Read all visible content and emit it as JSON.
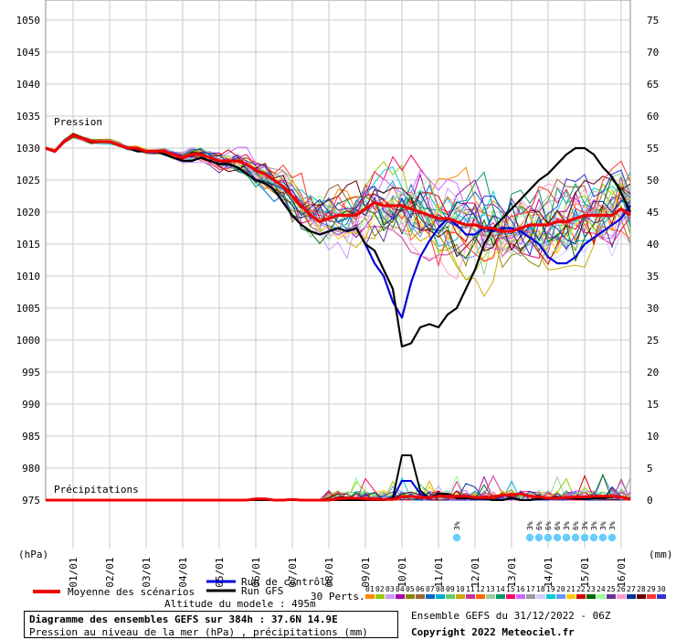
{
  "chart_data": {
    "type": "line",
    "title": "Diagramme des ensembles GEFS sur 384h : 37.6N 14.9E",
    "subtitle": "Pression au niveau de la mer (hPa) , précipitations (mm)",
    "left_axis_unit": "(hPa)",
    "right_axis_unit": "(mm)",
    "left_ticks": [
      1050,
      1045,
      1040,
      1035,
      1030,
      1025,
      1020,
      1015,
      1010,
      1005,
      1000,
      995,
      990,
      985,
      980,
      975
    ],
    "right_ticks": [
      75,
      70,
      65,
      60,
      55,
      50,
      45,
      40,
      35,
      30,
      25,
      20,
      15,
      10,
      5,
      0
    ],
    "x_labels": [
      "01/01",
      "02/01",
      "03/01",
      "04/01",
      "05/01",
      "06/01",
      "07/01",
      "08/01",
      "09/01",
      "10/01",
      "11/01",
      "12/01",
      "13/01",
      "14/01",
      "15/01",
      "16/01"
    ],
    "pressure_label": "Pression",
    "precip_label": "Précipitations",
    "ylim_pressure": [
      975,
      1050
    ],
    "ylim_precip": [
      0,
      75
    ],
    "grid": true,
    "hours": [
      0,
      6,
      12,
      18,
      24,
      30,
      36,
      42,
      48,
      54,
      60,
      66,
      72,
      78,
      84,
      90,
      96,
      102,
      108,
      114,
      120,
      126,
      132,
      138,
      144,
      150,
      156,
      162,
      168,
      174,
      180,
      186,
      192,
      198,
      204,
      210,
      216,
      222,
      228,
      234,
      240,
      246,
      252,
      258,
      264,
      270,
      276,
      282,
      288,
      294,
      300,
      306,
      312,
      318,
      324,
      330,
      336,
      342,
      348,
      354,
      360,
      366,
      372,
      378,
      384
    ],
    "series": [
      {
        "name": "Moyenne des scénarios",
        "color": "#ee0000",
        "values": [
          1030,
          1029.5,
          1031,
          1032,
          1031.5,
          1031,
          1031,
          1031,
          1030.5,
          1030,
          1030,
          1029.5,
          1029.5,
          1029.5,
          1029,
          1028.5,
          1029,
          1029,
          1028.5,
          1028,
          1028,
          1028,
          1027.5,
          1026.5,
          1026,
          1025,
          1024,
          1022.5,
          1021,
          1019.5,
          1018.5,
          1019,
          1019.5,
          1019.5,
          1019.5,
          1020.5,
          1021.5,
          1021,
          1021,
          1021,
          1020.5,
          1020,
          1019.5,
          1019,
          1019,
          1018.5,
          1018,
          1018,
          1017.5,
          1017.5,
          1017,
          1017,
          1017.5,
          1018,
          1018,
          1018,
          1018.5,
          1018.5,
          1019,
          1019.5,
          1019.5,
          1019.5,
          1019.5,
          1020.5,
          1019.5
        ]
      },
      {
        "name": "Run de contrôle",
        "color": "#0000dd",
        "values": [
          1030,
          1029.5,
          1031,
          1032,
          1031.5,
          1031,
          1031,
          1031,
          1030.5,
          1030,
          1029.5,
          1029.5,
          1029.5,
          1029,
          1028.5,
          1028,
          1028,
          1028.5,
          1028,
          1027.5,
          1027.5,
          1027,
          1026,
          1025,
          1024.5,
          1023.5,
          1021.5,
          1019.5,
          1018,
          1017,
          1016.5,
          1017,
          1017.5,
          1017,
          1017.5,
          1015,
          1012,
          1010,
          1006,
          1003.5,
          1009,
          1013,
          1015.5,
          1017.5,
          1019,
          1018,
          1016.5,
          1016.5,
          1017.5,
          1017,
          1017.5,
          1017.5,
          1017,
          1016,
          1015,
          1013,
          1012,
          1012,
          1013,
          1015,
          1016,
          1017,
          1018,
          1019,
          1021
        ]
      },
      {
        "name": "Run GFS",
        "color": "#000000",
        "values": [
          1030,
          1029.5,
          1031,
          1032,
          1031.5,
          1031,
          1031,
          1031,
          1030.5,
          1030,
          1029.5,
          1029.5,
          1029.5,
          1029,
          1028.5,
          1028,
          1028,
          1028.5,
          1028,
          1027.5,
          1027.5,
          1027,
          1026,
          1025,
          1024.5,
          1023.5,
          1021.5,
          1019.5,
          1018,
          1017,
          1016.5,
          1017,
          1017.5,
          1017,
          1017.5,
          1015,
          1014,
          1011,
          1008,
          999,
          999.5,
          1002,
          1002.5,
          1002,
          1004,
          1005,
          1008,
          1011,
          1015,
          1017.5,
          1019,
          1020.5,
          1022,
          1023.5,
          1025,
          1026,
          1027.5,
          1029,
          1030,
          1030,
          1029,
          1027,
          1025.5,
          1023,
          1020
        ]
      }
    ],
    "precip_series": [
      {
        "name": "Moyenne des scénarios",
        "color": "#ee0000",
        "values": [
          0,
          0,
          0,
          0,
          0,
          0,
          0,
          0,
          0,
          0,
          0,
          0,
          0,
          0,
          0,
          0,
          0,
          0,
          0,
          0,
          0,
          0,
          0,
          0.2,
          0.2,
          0,
          0,
          0.1,
          0,
          0,
          0,
          0,
          0.2,
          0.3,
          0.3,
          0.2,
          0.1,
          0.1,
          0.1,
          0.5,
          0.6,
          0.4,
          0.4,
          0.6,
          0.6,
          0.6,
          0.6,
          0.4,
          0.4,
          0.4,
          0.8,
          0.8,
          1,
          0.6,
          0.5,
          0.3,
          0.3,
          0.4,
          0.5,
          0.5,
          0.6,
          0.6,
          0.6,
          0.5,
          0.1
        ]
      },
      {
        "name": "Run de contrôle",
        "color": "#0000dd",
        "values": [
          0,
          0,
          0,
          0,
          0,
          0,
          0,
          0,
          0,
          0,
          0,
          0,
          0,
          0,
          0,
          0,
          0,
          0,
          0,
          0,
          0,
          0,
          0,
          0,
          0,
          0,
          0,
          0,
          0,
          0,
          0,
          0,
          0,
          0,
          0,
          0,
          0,
          0,
          0.3,
          3,
          3,
          1,
          0.3,
          0.5,
          1,
          0.5,
          0.3,
          0.5,
          0.2,
          0,
          0,
          0.3,
          0,
          0,
          0.2,
          0.3,
          0.5,
          0.3,
          0.2,
          0.2,
          0.3,
          0.3,
          0.5,
          0.5,
          0.1
        ]
      },
      {
        "name": "Run GFS",
        "color": "#000000",
        "values": [
          0,
          0,
          0,
          0,
          0,
          0,
          0,
          0,
          0,
          0,
          0,
          0,
          0,
          0,
          0,
          0,
          0,
          0,
          0,
          0,
          0,
          0,
          0,
          0,
          0,
          0,
          0,
          0,
          0,
          0,
          0,
          0,
          0,
          0,
          0,
          0,
          0,
          0,
          0.3,
          7,
          7,
          1.5,
          0.3,
          1,
          1,
          0.3,
          0.3,
          0.2,
          0.2,
          0,
          0,
          0.3,
          0,
          0,
          0.2,
          0.2,
          0.5,
          0.3,
          0.2,
          0.2,
          0.3,
          0.3,
          0.5,
          0.5,
          0.1
        ]
      }
    ],
    "snow_markers": [
      {
        "x_hour": 270,
        "text": "3%"
      },
      {
        "x_hour": 318,
        "text": "3%"
      },
      {
        "x_hour": 324,
        "text": "6%"
      },
      {
        "x_hour": 330,
        "text": "6%"
      },
      {
        "x_hour": 336,
        "text": "6%"
      },
      {
        "x_hour": 342,
        "text": "3%"
      },
      {
        "x_hour": 348,
        "text": "6%"
      },
      {
        "x_hour": 354,
        "text": "3%"
      },
      {
        "x_hour": 360,
        "text": "3%"
      },
      {
        "x_hour": 366,
        "text": "3%"
      },
      {
        "x_hour": 372,
        "text": "3%"
      }
    ]
  },
  "legend": {
    "mean_label": "Moyenne des scénarios",
    "control_label": "Run de contrôle",
    "gfs_label": "Run GFS",
    "perts_label": "30 Perts.",
    "perts": [
      "01",
      "02",
      "03",
      "04",
      "05",
      "06",
      "07",
      "08",
      "09",
      "10",
      "11",
      "12",
      "13",
      "14",
      "15",
      "16",
      "17",
      "18",
      "19",
      "20",
      "21",
      "22",
      "23",
      "24",
      "25",
      "26",
      "27",
      "28",
      "29",
      "30"
    ],
    "pert_colors": [
      "#ff8800",
      "#99cc00",
      "#cc99ff",
      "#aa00aa",
      "#888800",
      "#996633",
      "#0066cc",
      "#00aacc",
      "#66cc66",
      "#ccaa00",
      "#cc3399",
      "#ff6600",
      "#99cc99",
      "#009966",
      "#ff0066",
      "#cc66ff",
      "#999999",
      "#ccccff",
      "#00cccc",
      "#6699ff",
      "#ffcc00",
      "#cc0000",
      "#006600",
      "#99ff99",
      "#663399",
      "#ff99cc",
      "#003399",
      "#660000",
      "#ff3333",
      "#3333cc"
    ]
  },
  "info": {
    "title": "Diagramme des ensembles GEFS sur 384h : 37.6N 14.9E",
    "subtitle": "Pression au niveau de la mer (hPa) , précipitations (mm)",
    "altitude": "Altitude du modele : 495m",
    "run": "Ensemble GEFS du 31/12/2022 - 06Z",
    "copyright": "Copyright 2022 Meteociel.fr"
  }
}
